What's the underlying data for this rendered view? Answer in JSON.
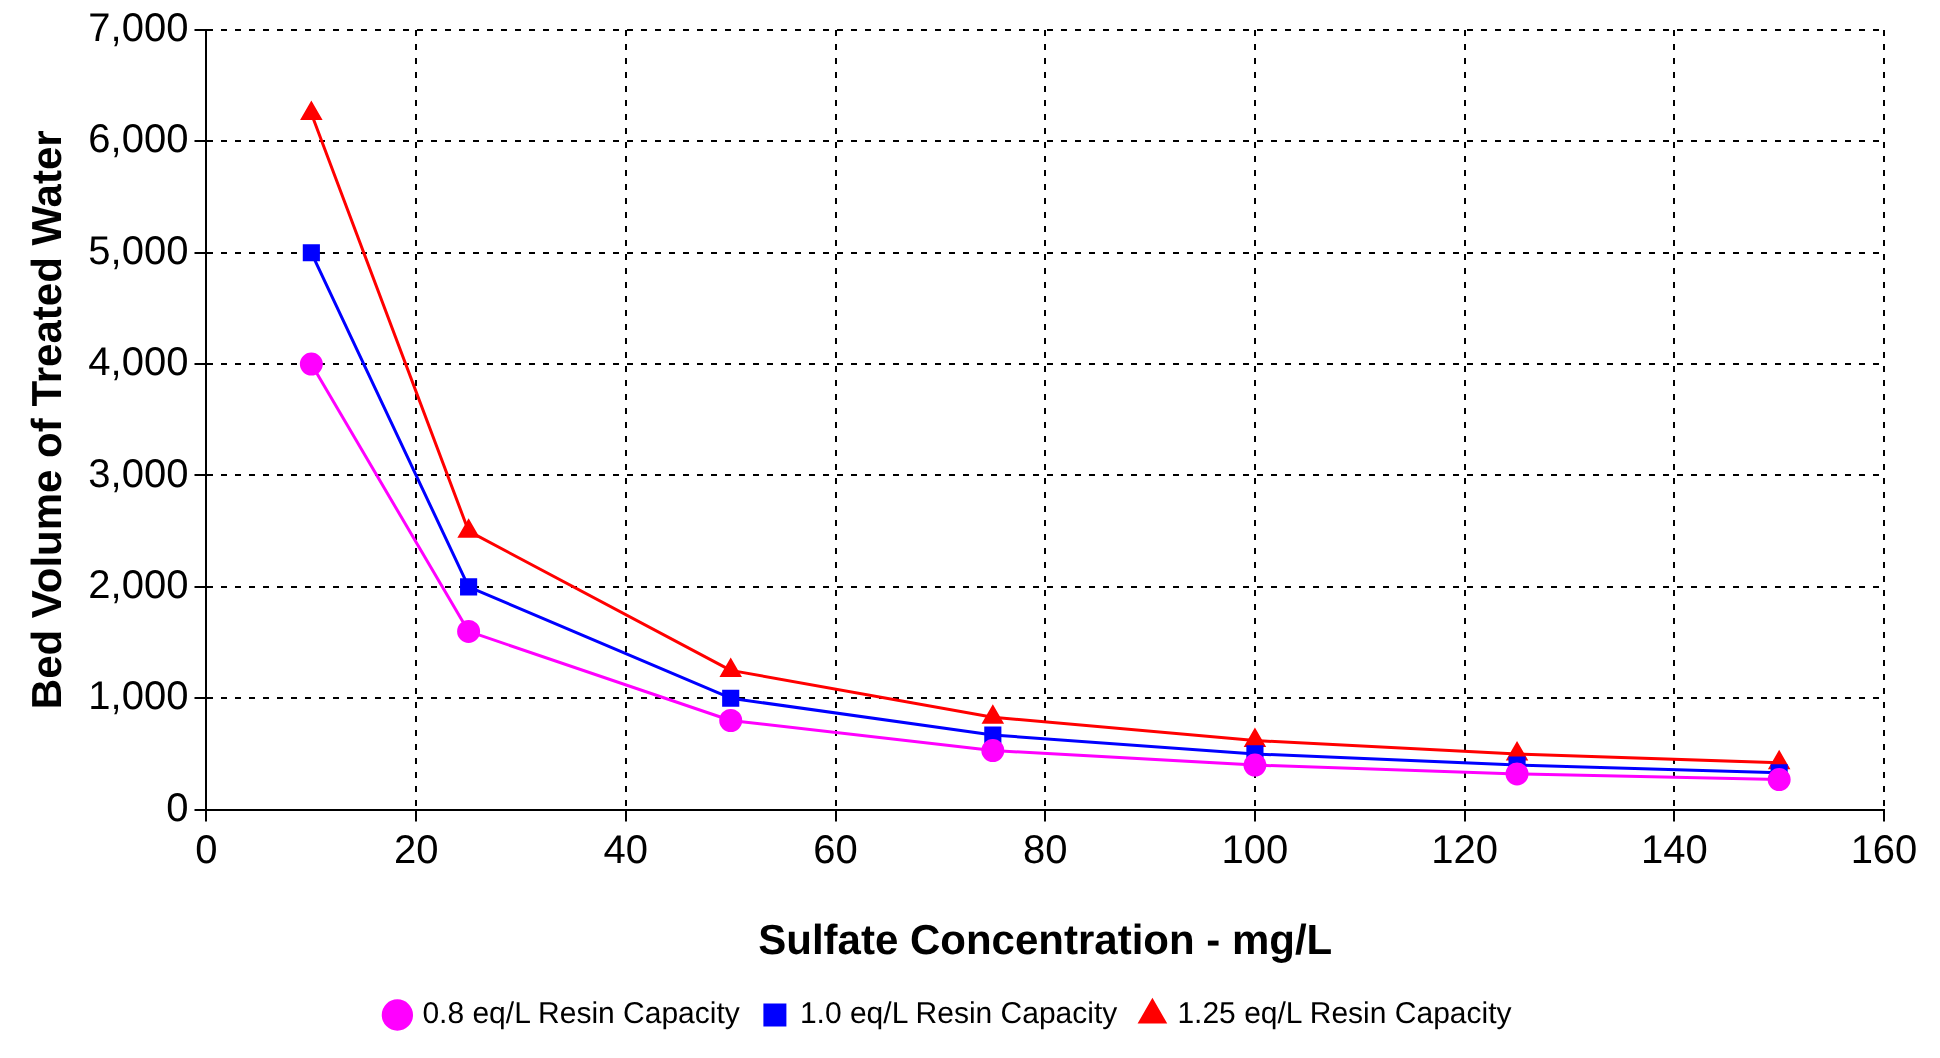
{
  "chart_data": {
    "type": "line",
    "xlabel": "Sulfate Concentration - mg/L",
    "ylabel": "Bed Volume of Treated Water",
    "x": [
      10,
      25,
      50,
      75,
      100,
      125,
      150
    ],
    "series": [
      {
        "name": "0.8 eq/L Resin Capacity",
        "color": "#ff00ff",
        "marker": "circle",
        "values": [
          4000,
          1600,
          800,
          530,
          400,
          320,
          270
        ]
      },
      {
        "name": "1.0 eq/L Resin Capacity",
        "color": "#0000ff",
        "marker": "square",
        "values": [
          5000,
          2000,
          1000,
          670,
          500,
          400,
          330
        ]
      },
      {
        "name": "1.25 eq/L Resin Capacity",
        "color": "#ff0000",
        "marker": "triangle",
        "values": [
          6250,
          2500,
          1250,
          830,
          620,
          500,
          420
        ]
      }
    ],
    "xlim": [
      0,
      160
    ],
    "xticks": [
      0,
      20,
      40,
      60,
      80,
      100,
      120,
      140,
      160
    ],
    "ylim": [
      0,
      7000
    ],
    "yticks": [
      0,
      {
        "value": 1000,
        "label": "1,000"
      },
      {
        "value": 2000,
        "label": "2,000"
      },
      {
        "value": 3000,
        "label": "3,000"
      },
      {
        "value": 4000,
        "label": "4,000"
      },
      {
        "value": 5000,
        "label": "5,000"
      },
      {
        "value": 6000,
        "label": "6,000"
      },
      {
        "value": 7000,
        "label": "7,000"
      }
    ],
    "grid": true,
    "legend": "bottom",
    "line_style": "solid"
  }
}
